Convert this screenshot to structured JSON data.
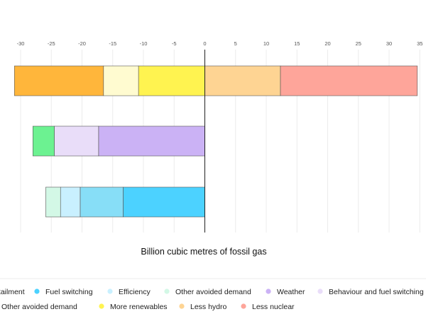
{
  "chart_data": {
    "type": "bar",
    "orientation": "horizontal",
    "stacked": true,
    "xlabel": "Billion cubic metres of fossil gas",
    "xlim": [
      -31,
      35
    ],
    "xticks": [
      -30,
      -25,
      -20,
      -15,
      -10,
      -5,
      0,
      5,
      10,
      15,
      20,
      25,
      30,
      35
    ],
    "grid": true,
    "legend_position": "bottom",
    "bars": [
      {
        "segments": [
          {
            "series": "Less nuclear",
            "start": 12.3,
            "end": 34.6
          },
          {
            "series": "Less hydro",
            "start": 0,
            "end": 12.3
          },
          {
            "series": "More renewables",
            "start": -10.8,
            "end": 0
          },
          {
            "series": "Other avoided demand",
            "start": -16.5,
            "end": -10.8
          },
          {
            "series": "Curtailment",
            "start": -31,
            "end": -16.5
          }
        ]
      },
      {
        "segments": [
          {
            "series": "Weather",
            "start": -17.3,
            "end": 0
          },
          {
            "series": "Behaviour and fuel switching",
            "start": -24.5,
            "end": -17.3
          },
          {
            "series": "Other avoided demand",
            "start": -28,
            "end": -24.5
          }
        ]
      },
      {
        "segments": [
          {
            "series": "Fuel switching",
            "start": -13.3,
            "end": 0
          },
          {
            "series": "Efficiency",
            "start": -20.3,
            "end": -13.3
          },
          {
            "series": "Efficiency",
            "start": -23.5,
            "end": -20.3
          },
          {
            "series": "Other avoided demand",
            "start": -25.9,
            "end": -23.5
          }
        ]
      }
    ],
    "legend": {
      "row1": [
        {
          "label": "Curtailment",
          "color": "#FFB63B"
        },
        {
          "label": "Fuel switching",
          "color": "#4CD2FF"
        },
        {
          "label": "Efficiency",
          "color": "#C9F0FF"
        },
        {
          "label": "Other avoided demand",
          "color": "#D3F8E6"
        },
        {
          "label": "Weather",
          "color": "#CBB2F5"
        },
        {
          "label": "Behaviour and fuel switching",
          "color": "#E9DDF9"
        }
      ],
      "row2": [
        {
          "label": "Other avoided demand",
          "color": "#6CF291"
        },
        {
          "label": "More renewables",
          "color": "#FFF350"
        },
        {
          "label": "Less hydro",
          "color": "#FED493"
        },
        {
          "label": "Less nuclear",
          "color": "#FEA59A"
        }
      ]
    },
    "segment_colors": {
      "Less nuclear": "#FEA59A",
      "Less hydro": "#FED493",
      "More renewables": "#FFF350",
      "Other avoided demand": "#FFFBD0",
      "Curtailment": "#FFB63B",
      "Weather": "#CBB2F5",
      "Behaviour and fuel switching": "#E9DDF9",
      "Fuel switching": "#4CD2FF",
      "Efficiency": "#C9F0FF"
    },
    "bar_overrides": {
      "1": {
        "Other avoided demand": "#6CF291"
      },
      "2": {
        "Efficiency": [
          "#87DEF7",
          "#C9F0FF"
        ],
        "Other avoided demand": "#D3F8E6"
      }
    }
  }
}
